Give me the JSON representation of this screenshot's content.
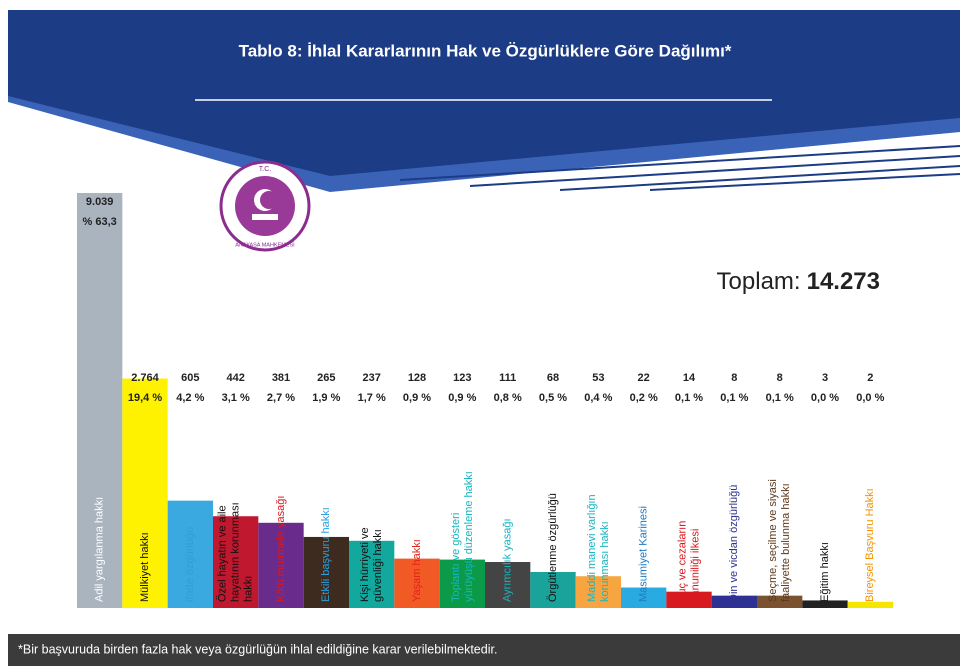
{
  "chart_data": {
    "type": "bar",
    "title": "Tablo 8: İhlal Kararlarının Hak ve Özgürlüklere Göre Dağılımı*",
    "logo": {
      "top": "T.C.",
      "bottom": "ANAYASA MAHKEMESİ"
    },
    "total": {
      "label": "Toplam:",
      "value": "14.273"
    },
    "note": "*Bir başvuruda birden fazla hak veya özgürlüğün ihlal edildiğine karar verilebilmektedir.",
    "scale": "sqrt",
    "categories": [
      "Adil yargılanma hakkı",
      "Mülkiyet hakkı",
      "ifade özgürlüğü",
      "Özel hayatın ve aile hayatının korunması hakkı",
      "Kötü muamele yasağı",
      "Etkili başvuru hakkı",
      "Kişi hürriyeti ve güvenliği hakkı",
      "Yaşam hakkı",
      "Toplantı ve gösteri yürüyüşü düzenleme hakkı",
      "Ayrımcılık yasağı",
      "Örgütlenme özgürlüğü",
      "Maddi manevi varlığın korunması hakkı",
      "Masumiyet Karinesi",
      "Suç ve cezaların kanuniliği ilkesi",
      "Din ve vicdan özgürlüğü",
      "Seçme, seçilme ve siyasi faaliyette bulunma hakkı",
      "Eğitim hakkı",
      "Bireysel Başvuru Hakkı"
    ],
    "values": [
      9039,
      2764,
      605,
      442,
      381,
      265,
      237,
      128,
      123,
      111,
      68,
      53,
      22,
      14,
      8,
      8,
      3,
      2
    ],
    "value_labels": [
      "9.039",
      "2.764",
      "605",
      "442",
      "381",
      "265",
      "237",
      "128",
      "123",
      "111",
      "68",
      "53",
      "22",
      "14",
      "8",
      "8",
      "3",
      "2"
    ],
    "percentages": [
      63.3,
      19.4,
      4.2,
      3.1,
      2.7,
      1.9,
      1.7,
      0.9,
      0.9,
      0.8,
      0.5,
      0.4,
      0.2,
      0.1,
      0.1,
      0.1,
      0.0,
      0.0
    ],
    "percentage_labels": [
      "% 63,3",
      "19,4 %",
      "4,2 %",
      "3,1 %",
      "2,7 %",
      "1,9 %",
      "1,7 %",
      "0,9 %",
      "0,9 %",
      "0,8 %",
      "0,5 %",
      "0,4 %",
      "0,2 %",
      "0,1 %",
      "0,1 %",
      "0,1 %",
      "0,0 %",
      "0,0 %"
    ],
    "colors": [
      "#a9b4bf",
      "#fff200",
      "#3aa9e0",
      "#c0182f",
      "#6a2c8c",
      "#3d2b20",
      "#13a89e",
      "#f15a24",
      "#0a9a48",
      "#444444",
      "#1aa39a",
      "#f7a541",
      "#29abe2",
      "#d71920",
      "#2e3192",
      "#7a5230",
      "#222222",
      "#f5e600"
    ],
    "label_colors": [
      "#ffffff",
      "#111111",
      "#2d9fd9",
      "#111111",
      "#d71920",
      "#2d9fd9",
      "#111111",
      "#e2231a",
      "#19b5c0",
      "#19b5c0",
      "#111111",
      "#19b5c0",
      "#1f7ac2",
      "#d71920",
      "#2e3192",
      "#5a3a20",
      "#111111",
      "#f39200"
    ]
  }
}
